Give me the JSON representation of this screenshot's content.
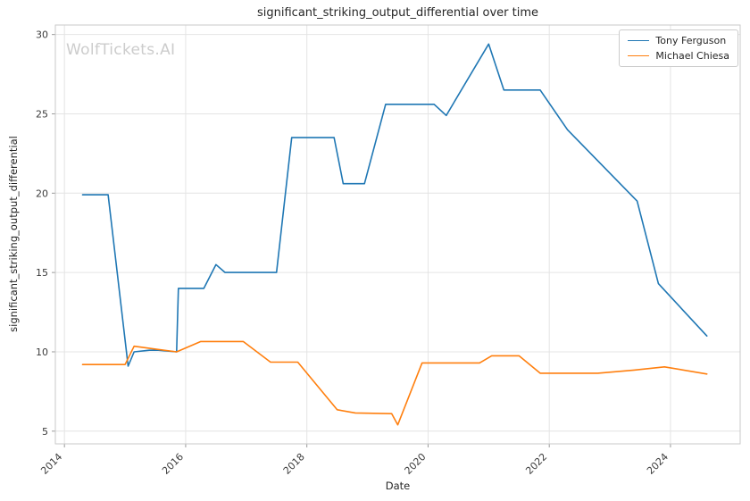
{
  "watermark": "WolfTickets.AI",
  "chart_data": {
    "type": "line",
    "title": "significant_striking_output_differential over time",
    "xlabel": "Date",
    "ylabel": "significant_striking_output_differential",
    "xlim": [
      2013.85,
      2025.15
    ],
    "ylim": [
      4.2,
      30.6
    ],
    "xticks": [
      2014,
      2016,
      2018,
      2020,
      2022,
      2024
    ],
    "yticks": [
      5,
      10,
      15,
      20,
      25,
      30
    ],
    "grid": true,
    "legend_position": "upper right",
    "colors": {
      "grid": "#e4e4e4",
      "spine": "#c9c9c9",
      "tick": "#9a9a9a",
      "text": "#3c3c3c"
    },
    "series": [
      {
        "name": "Tony Ferguson",
        "color": "#1f77b4",
        "points": [
          [
            2014.3,
            19.9
          ],
          [
            2014.72,
            19.9
          ],
          [
            2015.05,
            9.1
          ],
          [
            2015.15,
            10.0
          ],
          [
            2015.4,
            10.1
          ],
          [
            2015.55,
            10.1
          ],
          [
            2015.85,
            10.0
          ],
          [
            2015.88,
            14.0
          ],
          [
            2016.3,
            14.0
          ],
          [
            2016.5,
            15.5
          ],
          [
            2016.65,
            15.0
          ],
          [
            2017.5,
            15.0
          ],
          [
            2017.75,
            23.5
          ],
          [
            2018.45,
            23.5
          ],
          [
            2018.6,
            20.6
          ],
          [
            2018.95,
            20.6
          ],
          [
            2019.3,
            25.6
          ],
          [
            2020.1,
            25.6
          ],
          [
            2020.3,
            24.9
          ],
          [
            2021.0,
            29.4
          ],
          [
            2021.25,
            26.5
          ],
          [
            2021.85,
            26.5
          ],
          [
            2022.3,
            24.0
          ],
          [
            2023.45,
            19.5
          ],
          [
            2023.8,
            14.3
          ],
          [
            2024.6,
            11.0
          ]
        ]
      },
      {
        "name": "Michael Chiesa",
        "color": "#ff7f0e",
        "points": [
          [
            2014.3,
            9.2
          ],
          [
            2015.0,
            9.2
          ],
          [
            2015.15,
            10.35
          ],
          [
            2015.45,
            10.2
          ],
          [
            2015.85,
            10.0
          ],
          [
            2016.25,
            10.65
          ],
          [
            2016.95,
            10.65
          ],
          [
            2017.4,
            9.35
          ],
          [
            2017.85,
            9.35
          ],
          [
            2018.5,
            6.35
          ],
          [
            2018.8,
            6.15
          ],
          [
            2019.4,
            6.1
          ],
          [
            2019.5,
            5.4
          ],
          [
            2019.9,
            9.3
          ],
          [
            2020.85,
            9.3
          ],
          [
            2021.05,
            9.75
          ],
          [
            2021.5,
            9.75
          ],
          [
            2021.85,
            8.65
          ],
          [
            2022.8,
            8.65
          ],
          [
            2023.4,
            8.85
          ],
          [
            2023.9,
            9.05
          ],
          [
            2024.6,
            8.6
          ]
        ]
      }
    ]
  }
}
